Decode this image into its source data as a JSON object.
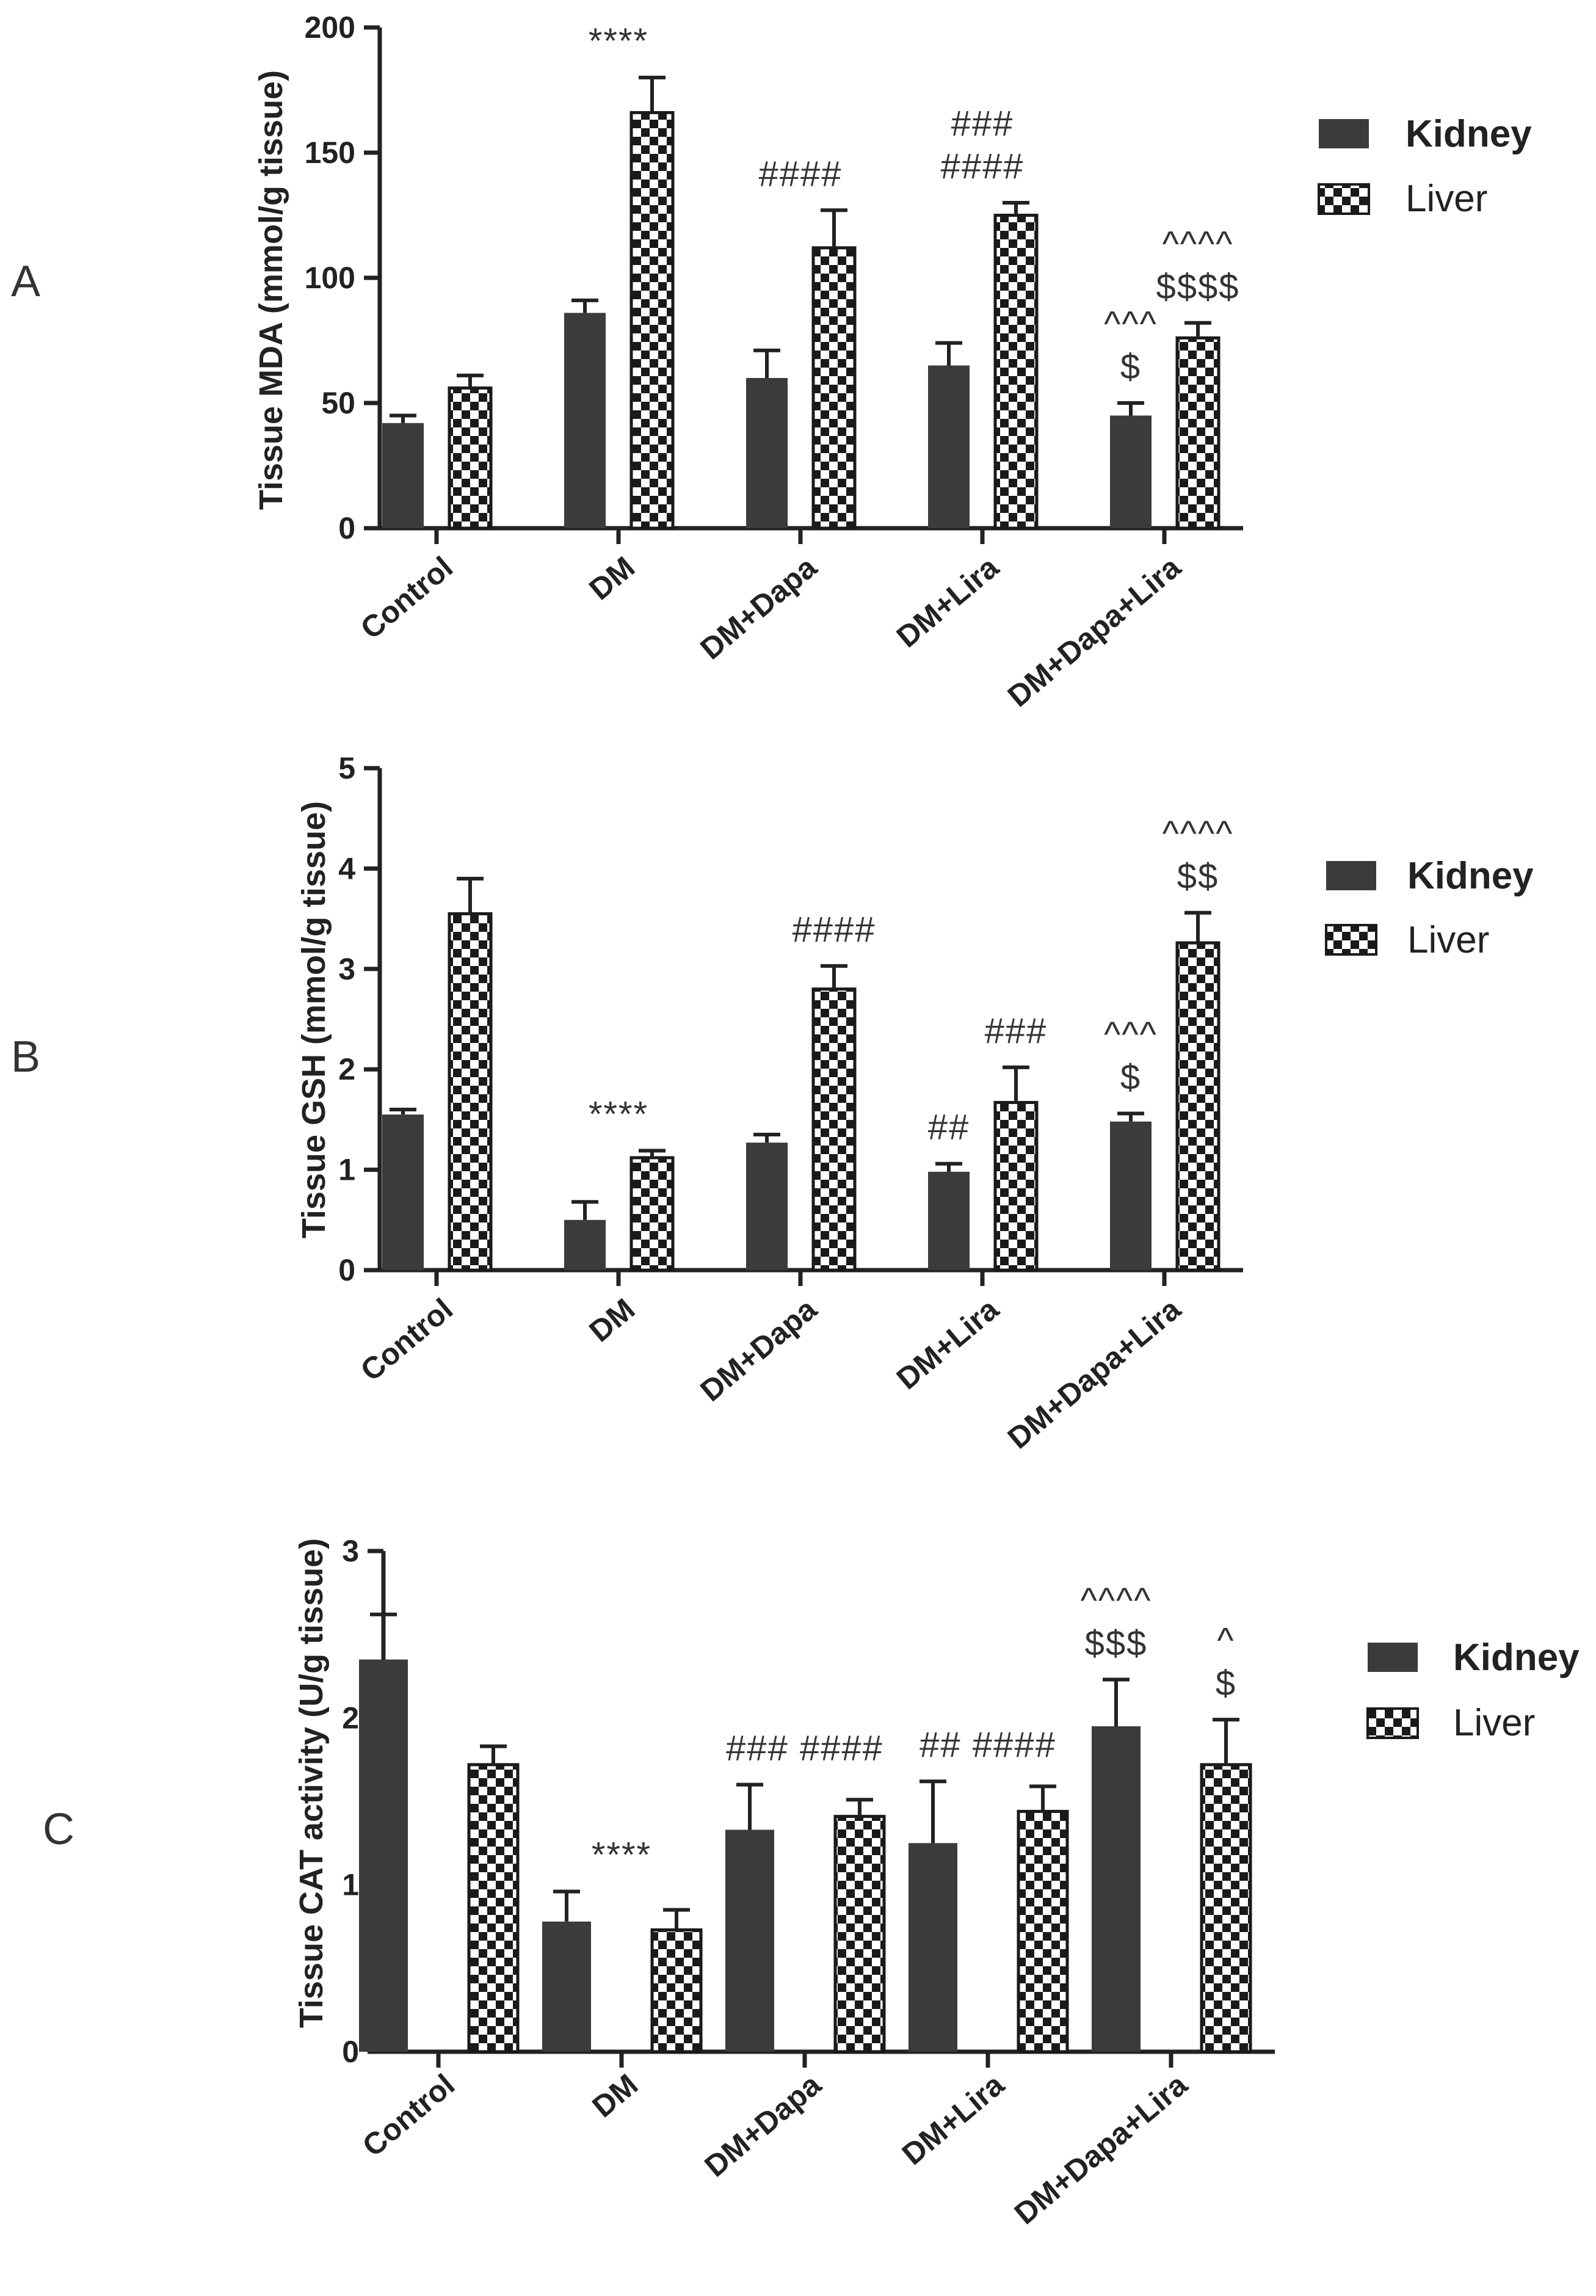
{
  "colors": {
    "kidney": "#3b3b3b",
    "liver_check_dark": "#1a1a1a",
    "liver_check_light": "#ffffff",
    "axis": "#222222",
    "text": "#222222"
  },
  "chart_data": [
    {
      "panel": "A",
      "type": "bar",
      "title": "",
      "xlabel": "",
      "ylabel": "Tissue MDA (mmol/g tissue)",
      "ylim": [
        0,
        200
      ],
      "yticks": [
        0,
        50,
        100,
        150,
        200
      ],
      "categories": [
        "Control",
        "DM",
        "DM+Dapa",
        "DM+Lira",
        "DM+Dapa+Lira"
      ],
      "series": [
        {
          "name": "Kidney",
          "values": [
            42,
            86,
            60,
            65,
            45
          ],
          "errors": [
            3,
            5,
            11,
            9,
            5
          ]
        },
        {
          "name": "Liver",
          "values": [
            56,
            166,
            112,
            125,
            76
          ],
          "errors": [
            5,
            14,
            15,
            5,
            6
          ]
        }
      ],
      "legend": {
        "position": "right",
        "items": [
          "Kidney",
          "Liver"
        ]
      },
      "annotations": [
        {
          "category": 1,
          "bar": "center",
          "lines": [
            "****"
          ]
        },
        {
          "category": 2,
          "bar": "center",
          "lines": [
            "####"
          ]
        },
        {
          "category": 3,
          "bar": "center",
          "lines": [
            "###",
            "####"
          ]
        },
        {
          "category": 4,
          "bar": "kidney",
          "lines": [
            "^^^",
            "$"
          ]
        },
        {
          "category": 4,
          "bar": "liver",
          "lines": [
            "^^^^",
            "$$$$"
          ]
        }
      ]
    },
    {
      "panel": "B",
      "type": "bar",
      "title": "",
      "xlabel": "",
      "ylabel": "Tissue GSH (mmol/g tissue)",
      "ylim": [
        0,
        5
      ],
      "yticks": [
        0,
        1,
        2,
        3,
        4,
        5
      ],
      "categories": [
        "Control",
        "DM",
        "DM+Dapa",
        "DM+Lira",
        "DM+Dapa+Lira"
      ],
      "series": [
        {
          "name": "Kidney",
          "values": [
            1.55,
            0.5,
            1.27,
            0.98,
            1.48
          ],
          "errors": [
            0.05,
            0.18,
            0.08,
            0.08,
            0.08
          ]
        },
        {
          "name": "Liver",
          "values": [
            3.55,
            1.12,
            2.8,
            1.67,
            3.26
          ],
          "errors": [
            0.35,
            0.07,
            0.23,
            0.35,
            0.3
          ]
        }
      ],
      "legend": {
        "position": "right",
        "items": [
          "Kidney",
          "Liver"
        ]
      },
      "annotations": [
        {
          "category": 1,
          "bar": "center",
          "lines": [
            "****"
          ]
        },
        {
          "category": 2,
          "bar": "liver",
          "lines": [
            "####"
          ]
        },
        {
          "category": 3,
          "bar": "kidney",
          "lines": [
            "##"
          ]
        },
        {
          "category": 3,
          "bar": "liver",
          "lines": [
            "###"
          ]
        },
        {
          "category": 4,
          "bar": "kidney",
          "lines": [
            "^^^",
            "$"
          ]
        },
        {
          "category": 4,
          "bar": "liver",
          "lines": [
            "^^^^",
            "$$"
          ]
        }
      ]
    },
    {
      "panel": "C",
      "type": "bar",
      "title": "",
      "xlabel": "",
      "ylabel": "Tissue CAT activity (U/g tissue)",
      "ylim": [
        0,
        3
      ],
      "yticks": [
        0,
        1,
        2,
        3
      ],
      "categories": [
        "Control",
        "DM",
        "DM+Dapa",
        "DM+Lira",
        "DM+Dapa+Lira"
      ],
      "series": [
        {
          "name": "Kidney",
          "values": [
            2.35,
            0.78,
            1.33,
            1.25,
            1.95
          ],
          "errors": [
            0.27,
            0.18,
            0.27,
            0.37,
            0.28
          ]
        },
        {
          "name": "Liver",
          "values": [
            1.72,
            0.73,
            1.41,
            1.44,
            1.72
          ],
          "errors": [
            0.11,
            0.12,
            0.1,
            0.15,
            0.27
          ]
        }
      ],
      "legend": {
        "position": "right",
        "items": [
          "Kidney",
          "Liver"
        ]
      },
      "annotations": [
        {
          "category": 1,
          "bar": "center",
          "lines": [
            "****"
          ]
        },
        {
          "category": 2,
          "bar": "center",
          "lines": [
            "### ####"
          ]
        },
        {
          "category": 3,
          "bar": "center",
          "lines": [
            "## ####"
          ]
        },
        {
          "category": 4,
          "bar": "kidney",
          "lines": [
            "^^^^",
            "$$$"
          ]
        },
        {
          "category": 4,
          "bar": "liver",
          "lines": [
            "^",
            "$"
          ]
        }
      ]
    }
  ]
}
